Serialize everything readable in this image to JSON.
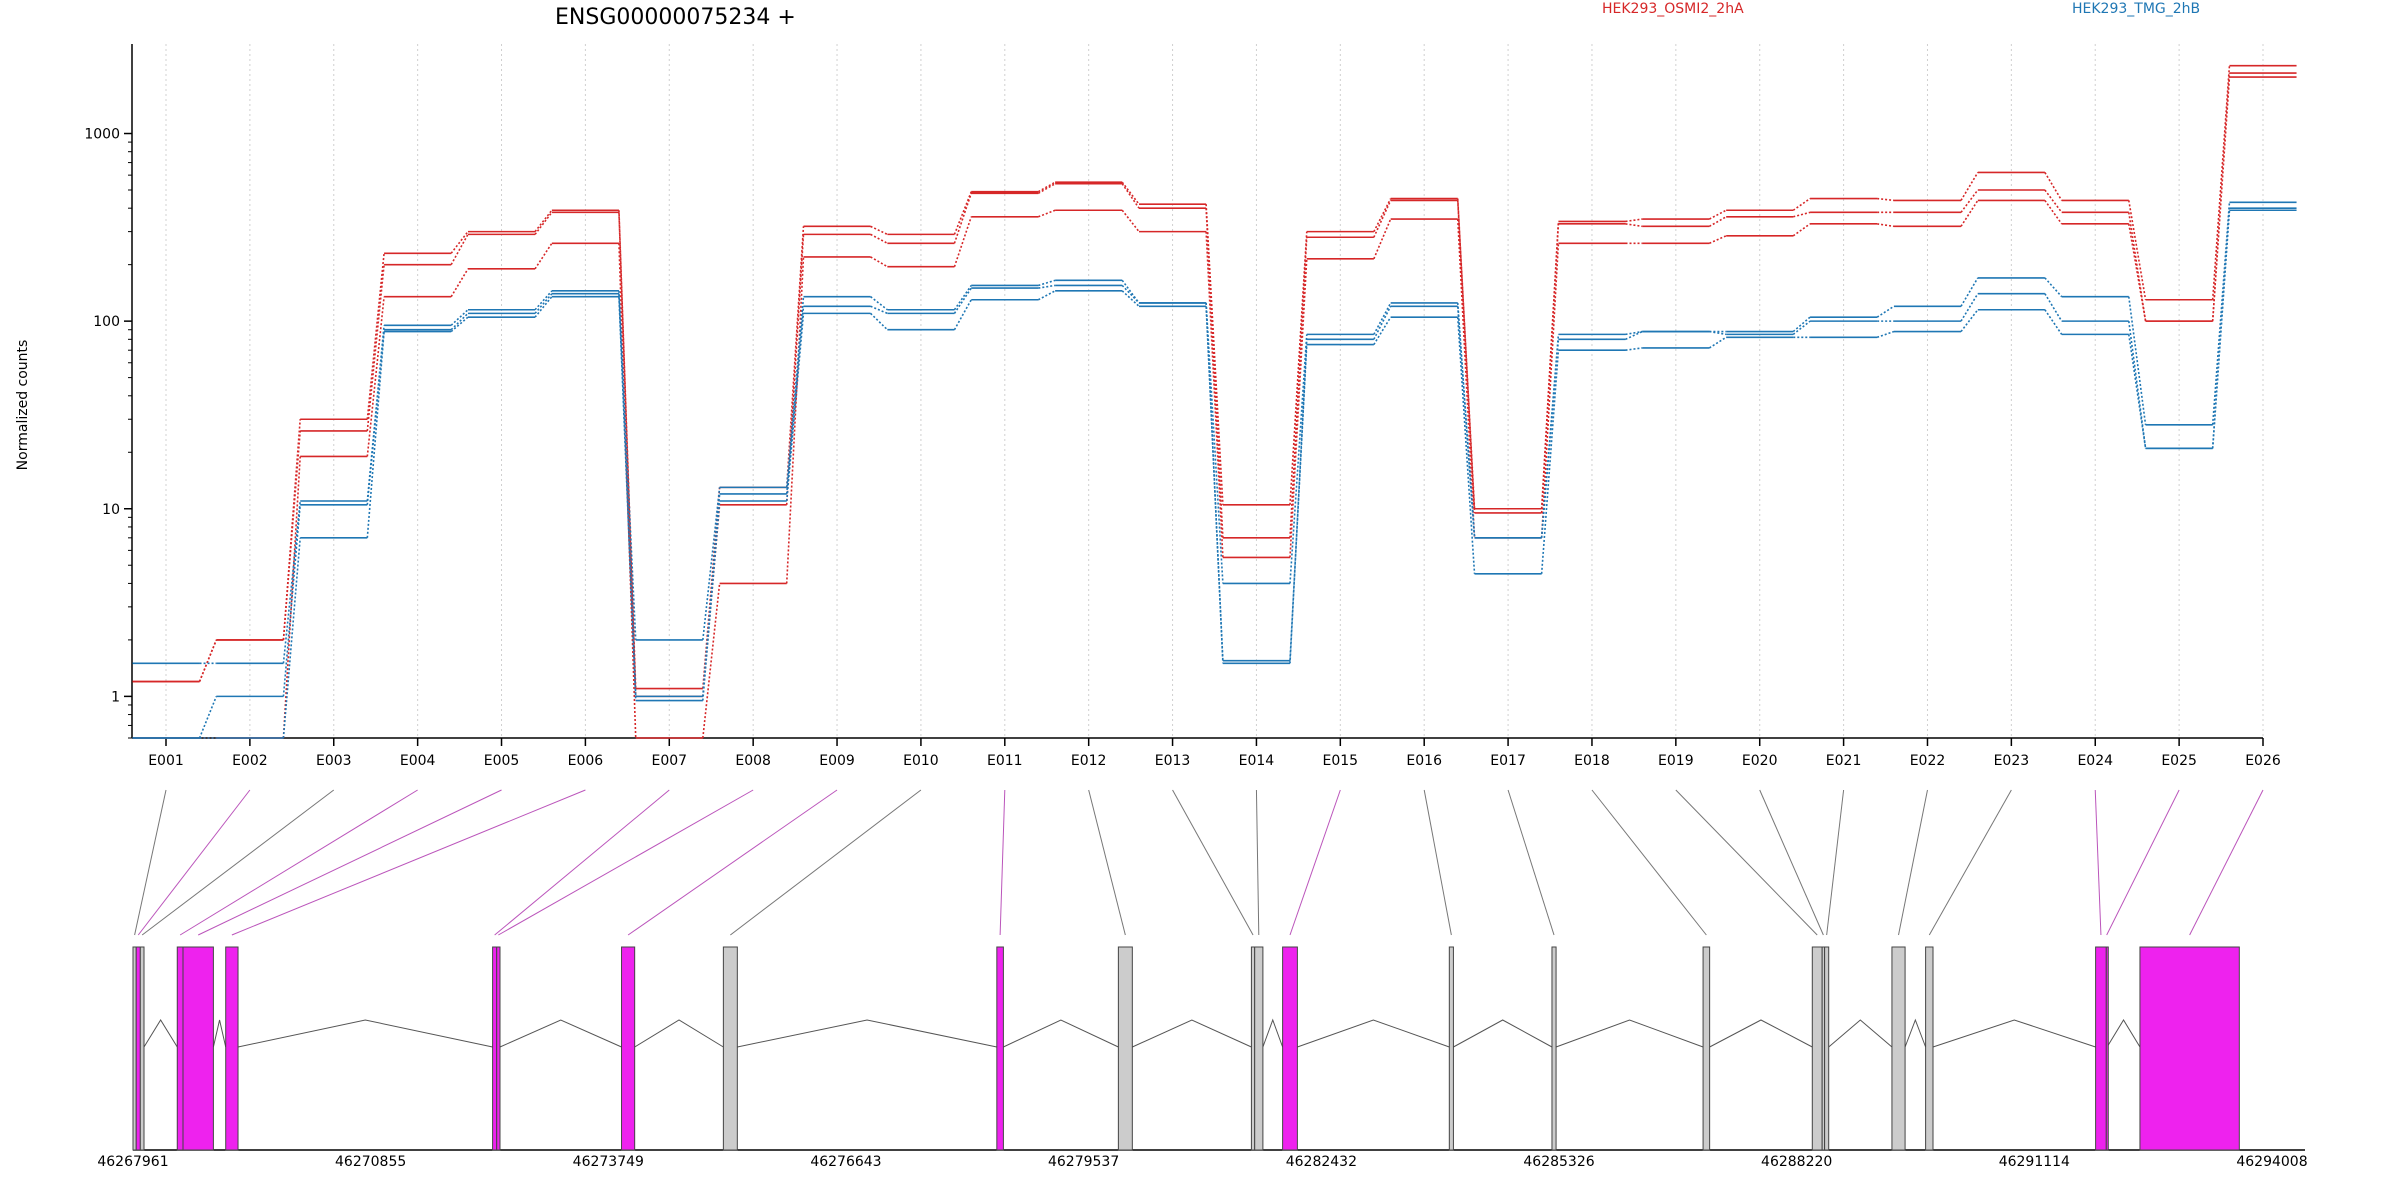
{
  "title": "ENSG00000075234 +",
  "legend": [
    {
      "name": "HEK293_OSMI2_2hA",
      "color": "#d62728"
    },
    {
      "name": "HEK293_TMG_2hB",
      "color": "#1f77b4"
    }
  ],
  "chart_data": {
    "type": "line",
    "scale": "log",
    "ylabel": "Normalized counts",
    "ylim": [
      0.6,
      3000
    ],
    "yticks": [
      "1",
      "10",
      "100",
      "1000"
    ],
    "ytick_values": [
      1,
      10,
      100,
      1000
    ],
    "grid": "vertical dotted",
    "legend_position": "top",
    "categories": [
      "E001",
      "E002",
      "E003",
      "E004",
      "E005",
      "E006",
      "E007",
      "E008",
      "E009",
      "E010",
      "E011",
      "E012",
      "E013",
      "E014",
      "E015",
      "E016",
      "E017",
      "E018",
      "E019",
      "E020",
      "E021",
      "E022",
      "E023",
      "E024",
      "E025",
      "E026"
    ],
    "series": [
      {
        "name": "HEK293_OSMI2_2hA",
        "color": "#d62728",
        "values": [
          1.2,
          2.0,
          30,
          230,
          300,
          390,
          1.1,
          13,
          320,
          290,
          490,
          550,
          420,
          10.5,
          300,
          450,
          10,
          340,
          350,
          390,
          450,
          440,
          620,
          440,
          130,
          2300
        ]
      },
      {
        "name": "HEK293_OSMI2_2hA",
        "color": "#d62728",
        "values": [
          1.2,
          2.0,
          26,
          200,
          290,
          380,
          1.0,
          10.5,
          290,
          260,
          480,
          540,
          400,
          7,
          280,
          440,
          9.5,
          330,
          320,
          360,
          380,
          380,
          500,
          380,
          100,
          2100
        ]
      },
      {
        "name": "HEK293_OSMI2_2hA",
        "color": "#d62728",
        "values": [
          0.6,
          0.6,
          19,
          135,
          190,
          260,
          0.6,
          4,
          220,
          195,
          360,
          390,
          300,
          5.5,
          215,
          350,
          7,
          260,
          260,
          285,
          330,
          320,
          440,
          330,
          100,
          2000
        ]
      },
      {
        "name": "HEK293_TMG_2hB",
        "color": "#1f77b4",
        "values": [
          1.5,
          1.5,
          11,
          95,
          115,
          145,
          2.0,
          13,
          135,
          115,
          155,
          165,
          125,
          4,
          85,
          125,
          7,
          85,
          88,
          88,
          105,
          120,
          170,
          135,
          28,
          430
        ]
      },
      {
        "name": "HEK293_TMG_2hB",
        "color": "#1f77b4",
        "values": [
          0.6,
          1.0,
          10.5,
          90,
          110,
          140,
          1.0,
          12,
          120,
          110,
          150,
          155,
          125,
          1.5,
          80,
          120,
          7,
          80,
          88,
          85,
          100,
          100,
          140,
          100,
          21,
          400
        ]
      },
      {
        "name": "HEK293_TMG_2hB",
        "color": "#1f77b4",
        "values": [
          0.6,
          0.6,
          7,
          88,
          105,
          135,
          0.95,
          11,
          110,
          90,
          130,
          145,
          120,
          1.55,
          75,
          105,
          4.5,
          70,
          72,
          82,
          82,
          88,
          115,
          85,
          21,
          390
        ]
      }
    ]
  },
  "gene_model": {
    "coord_ticks": [
      {
        "label": "46267961",
        "value": 46267961
      },
      {
        "label": "46270855",
        "value": 46270855
      },
      {
        "label": "46273749",
        "value": 46273749
      },
      {
        "label": "46276643",
        "value": 46276643
      },
      {
        "label": "46279537",
        "value": 46279537
      },
      {
        "label": "46282432",
        "value": 46282432
      },
      {
        "label": "46285326",
        "value": 46285326
      },
      {
        "label": "46288220",
        "value": 46288220
      },
      {
        "label": "46291114",
        "value": 46291114
      },
      {
        "label": "46294008",
        "value": 46294008
      }
    ],
    "exons": [
      {
        "id": "E001",
        "start": 46267961,
        "end": 46268000,
        "highlight": false
      },
      {
        "id": "E002",
        "start": 46268000,
        "end": 46268050,
        "highlight": true
      },
      {
        "id": "E003",
        "start": 46268050,
        "end": 46268095,
        "highlight": false
      },
      {
        "id": "E004",
        "start": 46268500,
        "end": 46268570,
        "highlight": true
      },
      {
        "id": "E005",
        "start": 46268570,
        "end": 46268940,
        "highlight": true
      },
      {
        "id": "E006",
        "start": 46269090,
        "end": 46269240,
        "highlight": true
      },
      {
        "id": "E007",
        "start": 46272340,
        "end": 46272390,
        "highlight": true
      },
      {
        "id": "E008",
        "start": 46272390,
        "end": 46272430,
        "highlight": true
      },
      {
        "id": "E009",
        "start": 46273910,
        "end": 46274070,
        "highlight": true
      },
      {
        "id": "E010",
        "start": 46275150,
        "end": 46275320,
        "highlight": false
      },
      {
        "id": "E011",
        "start": 46278480,
        "end": 46278560,
        "highlight": true
      },
      {
        "id": "E012",
        "start": 46279960,
        "end": 46280130,
        "highlight": false
      },
      {
        "id": "E013",
        "start": 46281580,
        "end": 46281620,
        "highlight": false
      },
      {
        "id": "E014",
        "start": 46281620,
        "end": 46281720,
        "highlight": false
      },
      {
        "id": "E015",
        "start": 46281960,
        "end": 46282140,
        "highlight": true
      },
      {
        "id": "E016",
        "start": 46283990,
        "end": 46284040,
        "highlight": false
      },
      {
        "id": "E017",
        "start": 46285240,
        "end": 46285290,
        "highlight": false
      },
      {
        "id": "E018",
        "start": 46287080,
        "end": 46287160,
        "highlight": false
      },
      {
        "id": "E019",
        "start": 46288410,
        "end": 46288530,
        "highlight": false
      },
      {
        "id": "E020",
        "start": 46288530,
        "end": 46288560,
        "highlight": false
      },
      {
        "id": "E021",
        "start": 46288560,
        "end": 46288610,
        "highlight": false
      },
      {
        "id": "E022",
        "start": 46289380,
        "end": 46289540,
        "highlight": false
      },
      {
        "id": "E023",
        "start": 46289790,
        "end": 46289880,
        "highlight": false
      },
      {
        "id": "E024",
        "start": 46291860,
        "end": 46291990,
        "highlight": true
      },
      {
        "id": "E025",
        "start": 46291990,
        "end": 46292000,
        "highlight": true
      },
      {
        "id": "E026",
        "start": 46292400,
        "end": 46293610,
        "highlight": true
      }
    ]
  }
}
